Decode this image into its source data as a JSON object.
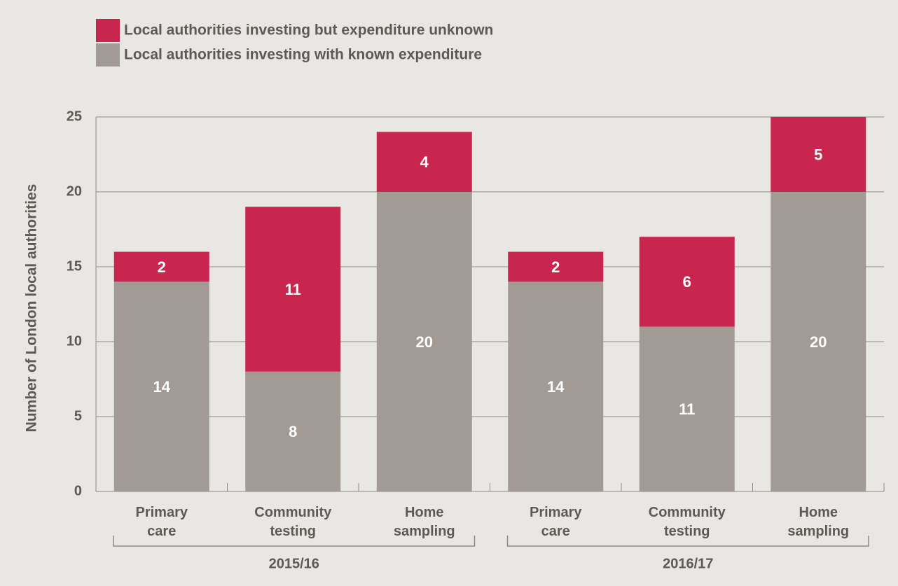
{
  "chart_data": {
    "type": "stacked-bar",
    "y_label": "Number of London local authorities",
    "categories": [
      "Primary care",
      "Community testing",
      "Home sampling",
      "Primary care",
      "Community testing",
      "Home sampling"
    ],
    "groups": [
      "2015/16",
      "2016/17"
    ],
    "series": [
      {
        "name": "Local authorities investing with known expenditure",
        "color": "#a29a94",
        "values": [
          14,
          8,
          20,
          14,
          11,
          20
        ]
      },
      {
        "name": "Local authorities investing but expenditure unknown",
        "color": "#c8254f",
        "values": [
          2,
          11,
          4,
          2,
          6,
          5
        ]
      }
    ],
    "ylim": [
      0,
      25
    ],
    "yticks": [
      0,
      5,
      10,
      15,
      20,
      25
    ],
    "grid": true
  }
}
